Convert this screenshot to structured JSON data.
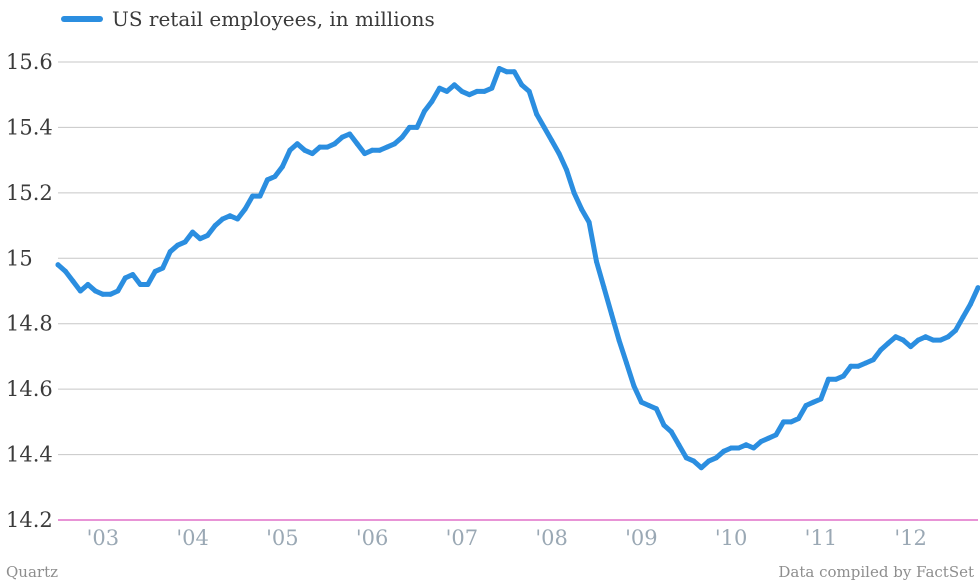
{
  "chart_data": {
    "type": "line",
    "legend": {
      "placement": "top-left"
    },
    "grid": true,
    "ylim": [
      14.2,
      15.65
    ],
    "yticks": [
      {
        "value": 15.6,
        "label": "15.6"
      },
      {
        "value": 15.4,
        "label": "15.4"
      },
      {
        "value": 15.2,
        "label": "15.2"
      },
      {
        "value": 15.0,
        "label": "15"
      },
      {
        "value": 14.8,
        "label": "14.8"
      },
      {
        "value": 14.6,
        "label": "14.6"
      },
      {
        "value": 14.4,
        "label": "14.4"
      },
      {
        "value": 14.2,
        "label": "14.2"
      }
    ],
    "xlim": [
      "2002-07",
      "2012-06"
    ],
    "xticks": [
      {
        "value": "2003-01",
        "label": "'03"
      },
      {
        "value": "2004-01",
        "label": "'04"
      },
      {
        "value": "2005-01",
        "label": "'05"
      },
      {
        "value": "2006-01",
        "label": "'06"
      },
      {
        "value": "2007-01",
        "label": "'07"
      },
      {
        "value": "2008-01",
        "label": "'08"
      },
      {
        "value": "2009-01",
        "label": "'09"
      },
      {
        "value": "2010-01",
        "label": "'10"
      },
      {
        "value": "2011-01",
        "label": "'11"
      },
      {
        "value": "2012-01",
        "label": "'12"
      }
    ],
    "series": [
      {
        "name": "US retail employees, in millions",
        "color": "#2b8ee0",
        "points": [
          [
            "2002-07",
            14.98
          ],
          [
            "2002-08",
            14.96
          ],
          [
            "2002-09",
            14.93
          ],
          [
            "2002-10",
            14.9
          ],
          [
            "2002-11",
            14.92
          ],
          [
            "2002-12",
            14.9
          ],
          [
            "2003-01",
            14.89
          ],
          [
            "2003-02",
            14.89
          ],
          [
            "2003-03",
            14.9
          ],
          [
            "2003-04",
            14.94
          ],
          [
            "2003-05",
            14.95
          ],
          [
            "2003-06",
            14.92
          ],
          [
            "2003-07",
            14.92
          ],
          [
            "2003-08",
            14.96
          ],
          [
            "2003-09",
            14.97
          ],
          [
            "2003-10",
            15.02
          ],
          [
            "2003-11",
            15.04
          ],
          [
            "2003-12",
            15.05
          ],
          [
            "2004-01",
            15.08
          ],
          [
            "2004-02",
            15.06
          ],
          [
            "2004-03",
            15.07
          ],
          [
            "2004-04",
            15.1
          ],
          [
            "2004-05",
            15.12
          ],
          [
            "2004-06",
            15.13
          ],
          [
            "2004-07",
            15.12
          ],
          [
            "2004-08",
            15.15
          ],
          [
            "2004-09",
            15.19
          ],
          [
            "2004-10",
            15.19
          ],
          [
            "2004-11",
            15.24
          ],
          [
            "2004-12",
            15.25
          ],
          [
            "2005-01",
            15.28
          ],
          [
            "2005-02",
            15.33
          ],
          [
            "2005-03",
            15.35
          ],
          [
            "2005-04",
            15.33
          ],
          [
            "2005-05",
            15.32
          ],
          [
            "2005-06",
            15.34
          ],
          [
            "2005-07",
            15.34
          ],
          [
            "2005-08",
            15.35
          ],
          [
            "2005-09",
            15.37
          ],
          [
            "2005-10",
            15.38
          ],
          [
            "2005-11",
            15.35
          ],
          [
            "2005-12",
            15.32
          ],
          [
            "2006-01",
            15.33
          ],
          [
            "2006-02",
            15.33
          ],
          [
            "2006-03",
            15.34
          ],
          [
            "2006-04",
            15.35
          ],
          [
            "2006-05",
            15.37
          ],
          [
            "2006-06",
            15.4
          ],
          [
            "2006-07",
            15.4
          ],
          [
            "2006-08",
            15.45
          ],
          [
            "2006-09",
            15.48
          ],
          [
            "2006-10",
            15.52
          ],
          [
            "2006-11",
            15.51
          ],
          [
            "2006-12",
            15.53
          ],
          [
            "2007-01",
            15.51
          ],
          [
            "2007-02",
            15.5
          ],
          [
            "2007-03",
            15.51
          ],
          [
            "2007-04",
            15.51
          ],
          [
            "2007-05",
            15.52
          ],
          [
            "2007-06",
            15.58
          ],
          [
            "2007-07",
            15.57
          ],
          [
            "2007-08",
            15.57
          ],
          [
            "2007-09",
            15.53
          ],
          [
            "2007-10",
            15.51
          ],
          [
            "2007-11",
            15.44
          ],
          [
            "2007-12",
            15.4
          ],
          [
            "2008-01",
            15.36
          ],
          [
            "2008-02",
            15.32
          ],
          [
            "2008-03",
            15.27
          ],
          [
            "2008-04",
            15.2
          ],
          [
            "2008-05",
            15.15
          ],
          [
            "2008-06",
            15.11
          ],
          [
            "2008-07",
            14.99
          ],
          [
            "2008-08",
            14.91
          ],
          [
            "2008-09",
            14.83
          ],
          [
            "2008-10",
            14.75
          ],
          [
            "2008-11",
            14.68
          ],
          [
            "2008-12",
            14.61
          ],
          [
            "2009-01",
            14.56
          ],
          [
            "2009-02",
            14.55
          ],
          [
            "2009-03",
            14.54
          ],
          [
            "2009-04",
            14.49
          ],
          [
            "2009-05",
            14.47
          ],
          [
            "2009-06",
            14.43
          ],
          [
            "2009-07",
            14.39
          ],
          [
            "2009-08",
            14.38
          ],
          [
            "2009-09",
            14.36
          ],
          [
            "2009-10",
            14.38
          ],
          [
            "2009-11",
            14.39
          ],
          [
            "2009-12",
            14.41
          ],
          [
            "2010-01",
            14.42
          ],
          [
            "2010-02",
            14.42
          ],
          [
            "2010-03",
            14.43
          ],
          [
            "2010-04",
            14.42
          ],
          [
            "2010-05",
            14.44
          ],
          [
            "2010-06",
            14.45
          ],
          [
            "2010-07",
            14.46
          ],
          [
            "2010-08",
            14.5
          ],
          [
            "2010-09",
            14.5
          ],
          [
            "2010-10",
            14.51
          ],
          [
            "2010-11",
            14.55
          ],
          [
            "2010-12",
            14.56
          ],
          [
            "2011-01",
            14.57
          ],
          [
            "2011-02",
            14.63
          ],
          [
            "2011-03",
            14.63
          ],
          [
            "2011-04",
            14.64
          ],
          [
            "2011-05",
            14.67
          ],
          [
            "2011-06",
            14.67
          ],
          [
            "2011-07",
            14.68
          ],
          [
            "2011-08",
            14.69
          ],
          [
            "2011-09",
            14.72
          ],
          [
            "2011-10",
            14.74
          ],
          [
            "2011-11",
            14.76
          ],
          [
            "2011-12",
            14.75
          ],
          [
            "2012-01",
            14.73
          ],
          [
            "2012-02",
            14.75
          ],
          [
            "2012-03",
            14.76
          ],
          [
            "2012-04",
            14.75
          ],
          [
            "2012-05",
            14.75
          ],
          [
            "2012-06",
            14.76
          ],
          [
            "2012-07",
            14.78
          ],
          [
            "2012-08",
            14.82
          ],
          [
            "2012-09",
            14.86
          ],
          [
            "2012-10",
            14.91
          ]
        ]
      }
    ]
  },
  "footer": {
    "source_left": "Quartz",
    "source_right": "Data compiled by FactSet"
  }
}
